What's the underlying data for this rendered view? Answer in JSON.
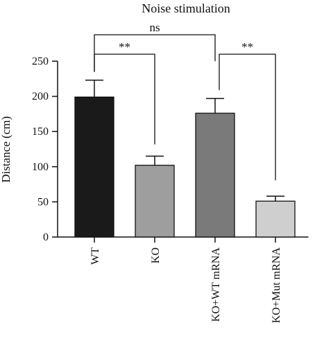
{
  "chart_data": {
    "type": "bar",
    "title": "Noise stimulation",
    "xlabel": "",
    "ylabel": "Distance (cm)",
    "ylim": [
      0,
      250
    ],
    "yticks": [
      0,
      50,
      100,
      150,
      200,
      250
    ],
    "grid": false,
    "categories": [
      "WT",
      "KO",
      "KO+WT mRNA",
      "KO+Mut mRNA"
    ],
    "values": [
      199,
      102,
      176,
      51
    ],
    "errors": [
      24,
      13,
      21,
      7
    ],
    "bar_colors": [
      "#1a1a1a",
      "#9e9e9e",
      "#7a7a7a",
      "#cfcfcf"
    ],
    "significance": [
      {
        "from": 0,
        "to": 1,
        "label": "**"
      },
      {
        "from": 2,
        "to": 3,
        "label": "**"
      },
      {
        "from": 0,
        "to": 2,
        "label": "ns"
      }
    ]
  }
}
